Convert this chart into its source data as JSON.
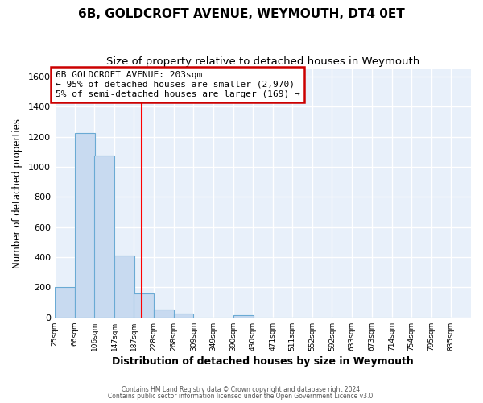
{
  "title": "6B, GOLDCROFT AVENUE, WEYMOUTH, DT4 0ET",
  "subtitle": "Size of property relative to detached houses in Weymouth",
  "xlabel": "Distribution of detached houses by size in Weymouth",
  "ylabel": "Number of detached properties",
  "bin_labels": [
    "25sqm",
    "66sqm",
    "106sqm",
    "147sqm",
    "187sqm",
    "228sqm",
    "268sqm",
    "309sqm",
    "349sqm",
    "390sqm",
    "430sqm",
    "471sqm",
    "511sqm",
    "552sqm",
    "592sqm",
    "633sqm",
    "673sqm",
    "714sqm",
    "754sqm",
    "795sqm",
    "835sqm"
  ],
  "bin_edges": [
    25,
    66,
    106,
    147,
    187,
    228,
    268,
    309,
    349,
    390,
    430,
    471,
    511,
    552,
    592,
    633,
    673,
    714,
    754,
    795,
    835
  ],
  "bar_heights": [
    200,
    1225,
    1075,
    410,
    160,
    55,
    25,
    0,
    0,
    15,
    0,
    0,
    0,
    0,
    0,
    0,
    0,
    0,
    0,
    0
  ],
  "bar_color": "#c8daf0",
  "bar_edge_color": "#6aaad4",
  "vline_x": 203,
  "vline_color": "red",
  "ylim": [
    0,
    1650
  ],
  "yticks": [
    0,
    200,
    400,
    600,
    800,
    1000,
    1200,
    1400,
    1600
  ],
  "annotation_title": "6B GOLDCROFT AVENUE: 203sqm",
  "annotation_line1": "← 95% of detached houses are smaller (2,970)",
  "annotation_line2": "5% of semi-detached houses are larger (169) →",
  "annotation_box_color": "white",
  "annotation_box_edge": "#cc0000",
  "footer1": "Contains HM Land Registry data © Crown copyright and database right 2024.",
  "footer2": "Contains public sector information licensed under the Open Government Licence v3.0.",
  "plot_bg_color": "#e8f0fa",
  "fig_bg_color": "#ffffff",
  "grid_color": "#ffffff",
  "title_fontsize": 11,
  "subtitle_fontsize": 9.5,
  "xlabel_fontsize": 9,
  "ylabel_fontsize": 8.5,
  "bin_width": 41
}
